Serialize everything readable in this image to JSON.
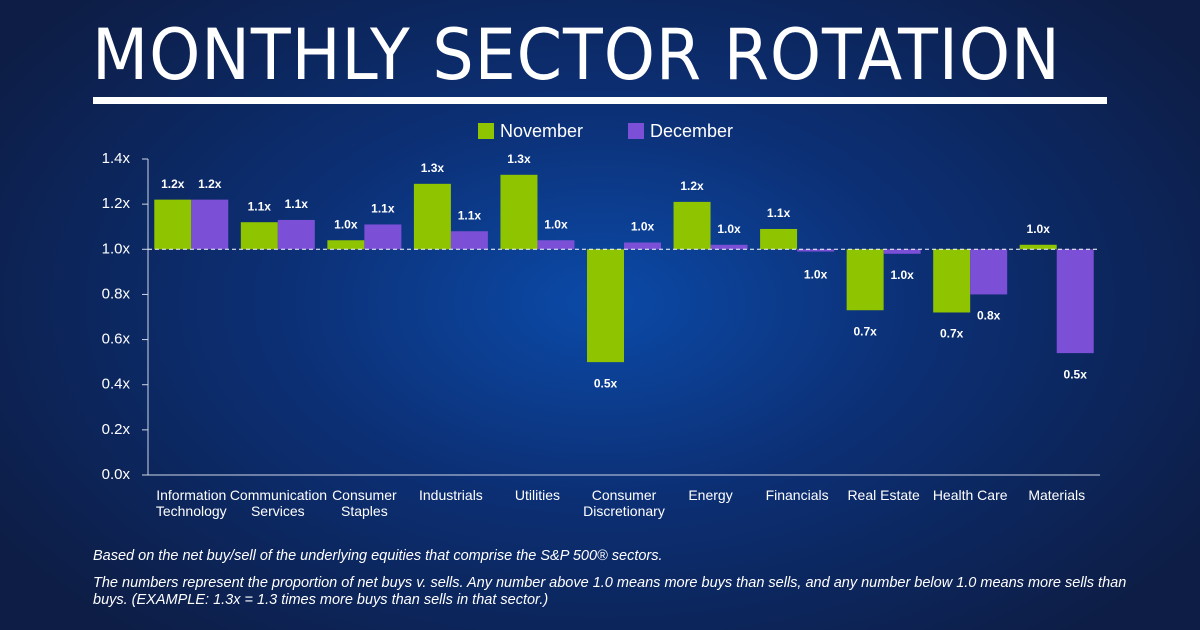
{
  "chart_data": {
    "type": "bar",
    "title": "MONTHLY SECTOR ROTATION",
    "categories": [
      "Information Technology",
      "Communication Services",
      "Consumer Staples",
      "Industrials",
      "Utilities",
      "Consumer Discretionary",
      "Energy",
      "Financials",
      "Real Estate",
      "Health Care",
      "Materials"
    ],
    "series": [
      {
        "name": "November",
        "color": "#8fc400",
        "values": [
          1.22,
          1.12,
          1.04,
          1.29,
          1.33,
          0.5,
          1.21,
          1.09,
          0.73,
          0.72,
          1.02
        ],
        "value_labels": [
          "1.2x",
          "1.1x",
          "1.0x",
          "1.3x",
          "1.3x",
          "0.5x",
          "1.2x",
          "1.1x",
          "0.7x",
          "0.7x",
          "1.0x"
        ]
      },
      {
        "name": "December",
        "color": "#7b4fd6",
        "values": [
          1.22,
          1.13,
          1.11,
          1.08,
          1.04,
          1.03,
          1.02,
          0.99,
          0.98,
          0.8,
          0.54
        ],
        "value_labels": [
          "1.2x",
          "1.1x",
          "1.1x",
          "1.1x",
          "1.0x",
          "1.0x",
          "1.0x",
          "1.0x",
          "1.0x",
          "0.8x",
          "0.5x"
        ]
      }
    ],
    "baseline": 1,
    "ylim": [
      0,
      1.4
    ],
    "yticks": [
      {
        "value": 0,
        "label": "0.0x"
      },
      {
        "value": 0.2,
        "label": "0.2x"
      },
      {
        "value": 0.4,
        "label": "0.4x"
      },
      {
        "value": 0.6,
        "label": "0.6x"
      },
      {
        "value": 0.8,
        "label": "0.8x"
      },
      {
        "value": 1,
        "label": "1.0x"
      },
      {
        "value": 1.2,
        "label": "1.2x"
      },
      {
        "value": 1.4,
        "label": "1.4x"
      }
    ],
    "notes": [
      "Based on the net buy/sell of the underlying equities that comprise the S&P 500® sectors.",
      "The numbers represent the proportion of net buys v. sells.  Any number above 1.0 means more buys than sells, and any number below 1.0 means more sells than buys. (EXAMPLE: 1.3x = 1.3 times more buys than sells in that sector.)"
    ]
  }
}
